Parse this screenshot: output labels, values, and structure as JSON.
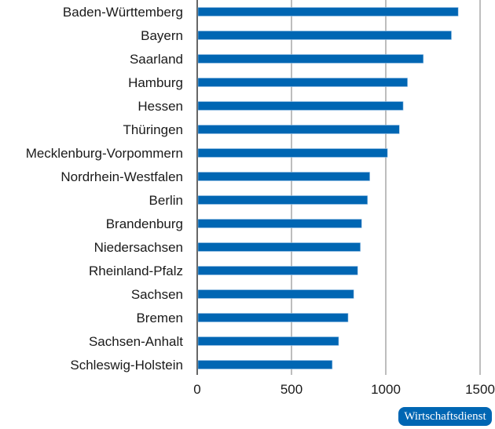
{
  "chart_data": {
    "type": "bar",
    "orientation": "horizontal",
    "categories": [
      "Baden-Württemberg",
      "Bayern",
      "Saarland",
      "Hamburg",
      "Hessen",
      "Thüringen",
      "Mecklenburg-Vorpommern",
      "Nordrhein-Westfalen",
      "Berlin",
      "Brandenburg",
      "Niedersachsen",
      "Rheinland-Pfalz",
      "Sachsen",
      "Bremen",
      "Sachsen-Anhalt",
      "Schleswig-Holstein"
    ],
    "values": [
      1384,
      1348,
      1199,
      1115,
      1092,
      1072,
      1009,
      915,
      903,
      872,
      865,
      851,
      830,
      800,
      750,
      716
    ],
    "title": "",
    "xlabel": "",
    "ylabel": "",
    "xlim": [
      0,
      1500
    ],
    "xticks": [
      0,
      500,
      1000,
      1500
    ],
    "xtick_labels": [
      "0",
      "500",
      "1000",
      "1500"
    ],
    "grid": true,
    "bar_color": "#0066b3",
    "grid_color": "#9a9a9a"
  },
  "branding": {
    "label": "Wirtschaftsdienst",
    "color": "#0066b3"
  }
}
